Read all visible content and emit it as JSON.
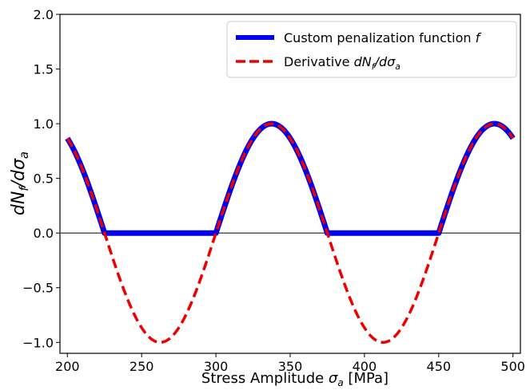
{
  "chart_data": {
    "type": "line",
    "title": "",
    "xlabel": "Stress Amplitude σ_a [MPa]",
    "xlabel_parts": {
      "main": "Stress Amplitude ",
      "sym": "σ",
      "sub": "a",
      "unit": " [MPa]"
    },
    "ylabel": "dN_f/dσ_a",
    "ylabel_parts": {
      "pre": "dN",
      "sub1": "f",
      "mid": "/dσ",
      "sub2": "a"
    },
    "xlim": [
      195,
      505
    ],
    "ylim": [
      -1.1,
      2.0
    ],
    "xticks": [
      200,
      250,
      300,
      350,
      400,
      450,
      500
    ],
    "yticks": [
      -1.0,
      -0.5,
      0.0,
      0.5,
      1.0,
      1.5,
      2.0
    ],
    "xtick_labels": [
      "200",
      "250",
      "300",
      "350",
      "400",
      "450",
      "500"
    ],
    "ytick_labels": [
      "−1.0",
      "−0.5",
      "0.0",
      "0.5",
      "1.0",
      "1.5",
      "2.0"
    ],
    "grid": false,
    "zero_line": true,
    "legend": {
      "placement": "top-right"
    },
    "x_range": [
      200,
      500
    ],
    "period": 150,
    "phase_peak": 337.5,
    "series": [
      {
        "name": "Custom penalization function f",
        "name_parts": {
          "main": "Custom penalization function ",
          "sym": "f"
        },
        "color": "#0000ee",
        "style": "solid",
        "formula": "max(0, cos(2π(x − 337.5)/150))",
        "x": [
          200,
          212.5,
          225,
          262.5,
          300,
          318.75,
          337.5,
          356.25,
          375,
          412.5,
          450,
          468.75,
          487.5,
          500
        ],
        "y": [
          0.866,
          0.5,
          0.0,
          0.0,
          0.0,
          0.707,
          1.0,
          0.707,
          0.0,
          0.0,
          0.0,
          0.707,
          1.0,
          0.866
        ]
      },
      {
        "name": "Derivative dN_f/dσ_a",
        "name_parts": {
          "main": "Derivative ",
          "a": "dN",
          "b": "f",
          "c": "/dσ",
          "d": "a"
        },
        "color": "#ee0000",
        "style": "dashed",
        "formula": "cos(2π(x − 337.5)/150)",
        "x": [
          200,
          212.5,
          225,
          262.5,
          300,
          318.75,
          337.5,
          356.25,
          375,
          412.5,
          450,
          468.75,
          487.5,
          500
        ],
        "y": [
          0.866,
          0.5,
          0.0,
          -1.0,
          0.0,
          0.707,
          1.0,
          0.707,
          0.0,
          -1.0,
          0.0,
          0.707,
          1.0,
          0.866
        ]
      }
    ]
  }
}
